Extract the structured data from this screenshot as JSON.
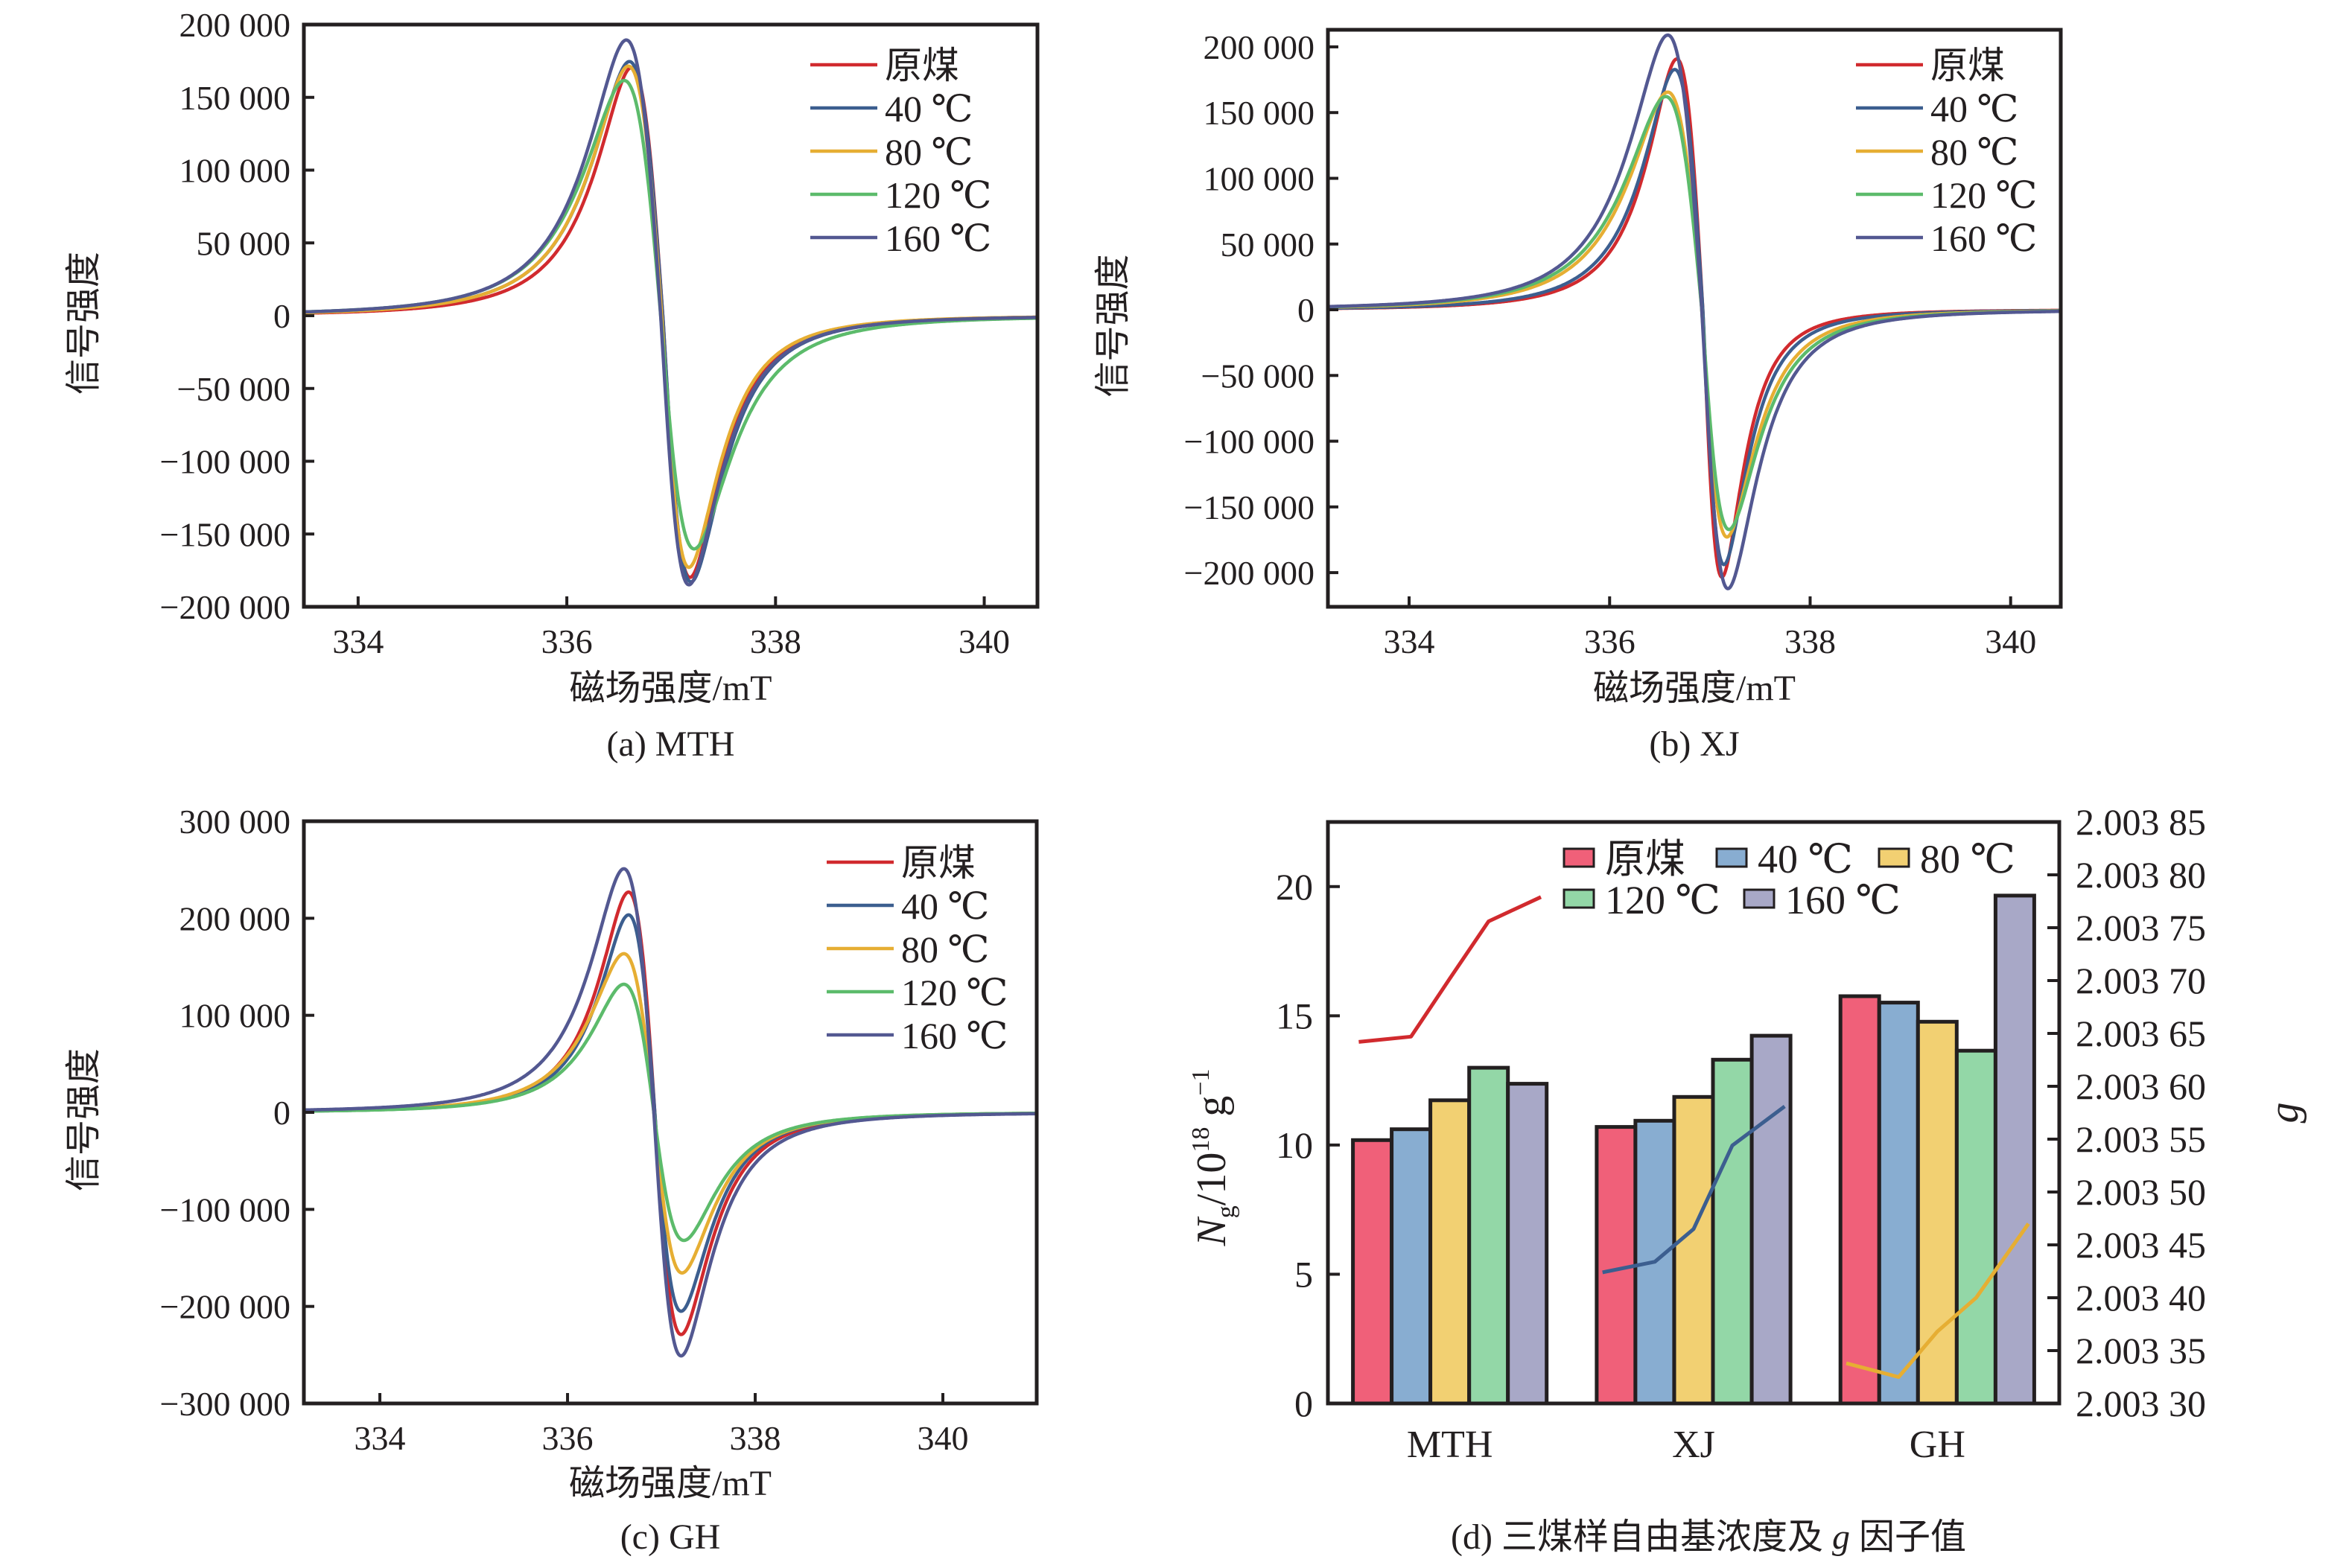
{
  "figure": {
    "panels_order": [
      "a",
      "b",
      "c",
      "d"
    ]
  },
  "chart_data": [
    {
      "id": "a",
      "type": "line",
      "caption": "(a) MTH",
      "xlabel": "磁场强度/mT",
      "ylabel": "信号强度",
      "xlim": [
        333.48,
        340.51
      ],
      "ylim": [
        -200000,
        200000
      ],
      "xticks": [
        334,
        336,
        338,
        340
      ],
      "xtick_labels": [
        "334",
        "336",
        "338",
        "340"
      ],
      "yticks": [
        200000,
        150000,
        100000,
        50000,
        0,
        -50000,
        -100000,
        -150000,
        -200000
      ],
      "ytick_labels": [
        "200 000",
        "150 000",
        "100 000",
        "50 000",
        "0",
        "−50 000",
        "−100 000",
        "−150 000",
        "−200 000"
      ],
      "legend_position": "top-right",
      "series": [
        {
          "name": "原煤",
          "color": "#D12A2E",
          "peak_x": 336.62,
          "peak_y": 170500,
          "zero_x": 336.92,
          "trough_x": 337.18,
          "trough_y": -179800
        },
        {
          "name": "40 ℃",
          "color": "#3C5E8F",
          "peak_x": 336.6,
          "peak_y": 174600,
          "zero_x": 336.92,
          "trough_x": 337.19,
          "trough_y": -182900
        },
        {
          "name": "80 ℃",
          "color": "#E6AE33",
          "peak_x": 336.59,
          "peak_y": 171500,
          "zero_x": 336.91,
          "trough_x": 337.17,
          "trough_y": -172900
        },
        {
          "name": "120 ℃",
          "color": "#5CBB6B",
          "peak_x": 336.55,
          "peak_y": 161600,
          "zero_x": 336.9,
          "trough_x": 337.22,
          "trough_y": -160200
        },
        {
          "name": "160 ℃",
          "color": "#535891",
          "peak_x": 336.57,
          "peak_y": 189400,
          "zero_x": 336.9,
          "trough_x": 337.17,
          "trough_y": -184900
        }
      ]
    },
    {
      "id": "b",
      "type": "line",
      "caption": "(b) XJ",
      "xlabel": "磁场强度/mT",
      "ylabel": "信号强度",
      "xlim": [
        333.19,
        340.5
      ],
      "ylim": [
        -226000,
        213000
      ],
      "xticks": [
        334,
        336,
        338,
        340
      ],
      "xtick_labels": [
        "334",
        "336",
        "338",
        "340"
      ],
      "yticks": [
        200000,
        150000,
        100000,
        50000,
        0,
        -50000,
        -100000,
        -150000,
        -200000
      ],
      "ytick_labels": [
        "200 000",
        "150 000",
        "100 000",
        "50 000",
        "0",
        "−50 000",
        "−100 000",
        "−150 000",
        "−200 000"
      ],
      "legend_position": "top-right",
      "series": [
        {
          "name": "原煤",
          "color": "#D12A2E",
          "peak_x": 336.67,
          "peak_y": 190800,
          "zero_x": 336.93,
          "trough_x": 337.12,
          "trough_y": -203400
        },
        {
          "name": "40 ℃",
          "color": "#3C5E8F",
          "peak_x": 336.65,
          "peak_y": 182800,
          "zero_x": 336.93,
          "trough_x": 337.14,
          "trough_y": -193900
        },
        {
          "name": "80 ℃",
          "color": "#E6AE33",
          "peak_x": 336.58,
          "peak_y": 165600,
          "zero_x": 336.92,
          "trough_x": 337.17,
          "trough_y": -172900
        },
        {
          "name": "120 ℃",
          "color": "#5CBB6B",
          "peak_x": 336.56,
          "peak_y": 162200,
          "zero_x": 336.92,
          "trough_x": 337.19,
          "trough_y": -167200
        },
        {
          "name": "160 ℃",
          "color": "#535891",
          "peak_x": 336.58,
          "peak_y": 209000,
          "zero_x": 336.92,
          "trough_x": 337.18,
          "trough_y": -212200
        }
      ]
    },
    {
      "id": "c",
      "type": "line",
      "caption": "(c) GH",
      "xlabel": "磁场强度/mT",
      "ylabel": "信号强度",
      "xlim": [
        333.19,
        341.0
      ],
      "ylim": [
        -300000,
        300000
      ],
      "xticks": [
        334,
        336,
        338,
        340
      ],
      "xtick_labels": [
        "334",
        "336",
        "338",
        "340"
      ],
      "yticks": [
        300000,
        200000,
        100000,
        0,
        -100000,
        -200000,
        -300000
      ],
      "ytick_labels": [
        "300 000",
        "200 000",
        "100 000",
        "0",
        "−100 000",
        "−200 000",
        "−300 000"
      ],
      "legend_position": "top-right",
      "series": [
        {
          "name": "原煤",
          "color": "#D12A2E",
          "peak_x": 336.65,
          "peak_y": 227000,
          "zero_x": 336.93,
          "trough_x": 337.21,
          "trough_y": -229000
        },
        {
          "name": "40 ℃",
          "color": "#3C5E8F",
          "peak_x": 336.65,
          "peak_y": 203500,
          "zero_x": 336.93,
          "trough_x": 337.21,
          "trough_y": -205000
        },
        {
          "name": "80 ℃",
          "color": "#E6AE33",
          "peak_x": 336.6,
          "peak_y": 163500,
          "zero_x": 336.92,
          "trough_x": 337.22,
          "trough_y": -165500
        },
        {
          "name": "120 ℃",
          "color": "#5CBB6B",
          "peak_x": 336.6,
          "peak_y": 132000,
          "zero_x": 336.92,
          "trough_x": 337.24,
          "trough_y": -132000
        },
        {
          "name": "160 ℃",
          "color": "#535891",
          "peak_x": 336.6,
          "peak_y": 251000,
          "zero_x": 336.92,
          "trough_x": 337.21,
          "trough_y": -251000
        }
      ]
    },
    {
      "id": "d",
      "type": "bar",
      "caption_parts": [
        "(d) 三煤样自由基浓度及 ",
        "g",
        " 因子值"
      ],
      "ylabel_parts": {
        "main": "N",
        "sub": "g",
        "mid": "/10",
        "sup": "18",
        "tail": " g",
        "sup2": "−1"
      },
      "y2label": "g",
      "categories": [
        "MTH",
        "XJ",
        "GH"
      ],
      "ylim": [
        0,
        22.5
      ],
      "yticks": [
        0,
        5,
        10,
        15,
        20
      ],
      "ytick_labels": [
        "0",
        "5",
        "10",
        "15",
        "20"
      ],
      "y2lim": [
        2.0033,
        2.00385
      ],
      "y2ticks": [
        2.0033,
        2.00335,
        2.0034,
        2.00345,
        2.0035,
        2.00355,
        2.0036,
        2.00365,
        2.0037,
        2.00375,
        2.0038,
        2.00385
      ],
      "y2tick_labels": [
        "2.003 30",
        "2.003 35",
        "2.003 40",
        "2.003 45",
        "2.003 50",
        "2.003 55",
        "2.003 60",
        "2.003 65",
        "2.003 70",
        "2.003 75",
        "2.003 80",
        "2.003 85"
      ],
      "legend_position": "top",
      "series": [
        {
          "name": "原煤",
          "color": "#F06079",
          "values": [
            10.19,
            10.7,
            15.76
          ]
        },
        {
          "name": "40 ℃",
          "color": "#88ADD1",
          "values": [
            10.61,
            10.94,
            15.51
          ]
        },
        {
          "name": "80 ℃",
          "color": "#F2D072",
          "values": [
            11.73,
            11.86,
            14.77
          ]
        },
        {
          "name": "120 ℃",
          "color": "#93D7A7",
          "values": [
            12.99,
            13.3,
            13.65
          ]
        },
        {
          "name": "160 ℃",
          "color": "#A8A8C7",
          "values": [
            12.37,
            14.23,
            19.65
          ]
        }
      ],
      "g_lines": [
        {
          "category": "MTH",
          "color": "#D12A2E",
          "values": [
            2.003642,
            2.003647,
            2.003702,
            2.003756,
            2.003779
          ]
        },
        {
          "category": "XJ",
          "color": "#3C5E8F",
          "values": [
            2.003424,
            2.003434,
            2.003465,
            2.003544,
            2.003581
          ]
        },
        {
          "category": "GH",
          "color": "#E6AE33",
          "values": [
            2.003338,
            2.003325,
            2.003368,
            2.0034,
            2.00347
          ]
        }
      ]
    }
  ]
}
